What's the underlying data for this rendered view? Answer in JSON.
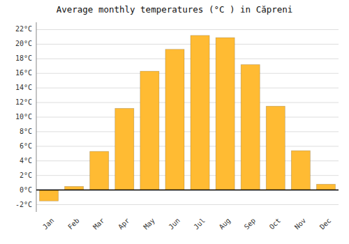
{
  "chart_data": {
    "type": "bar",
    "title": "Average monthly temperatures (°C ) in Căpreni",
    "categories": [
      "Jan",
      "Feb",
      "Mar",
      "Apr",
      "May",
      "Jun",
      "Jul",
      "Aug",
      "Sep",
      "Oct",
      "Nov",
      "Dec"
    ],
    "values": [
      -1.5,
      0.5,
      5.3,
      11.2,
      16.3,
      19.3,
      21.2,
      20.9,
      17.2,
      11.5,
      5.4,
      0.8
    ],
    "color": "#FFBB33",
    "ylim": [
      -3.0,
      23.0
    ],
    "yticks": [
      {
        "value": -2,
        "label": "-2°C"
      },
      {
        "value": 0,
        "label": "0°C"
      },
      {
        "value": 2,
        "label": "2°C"
      },
      {
        "value": 4,
        "label": "4°C"
      },
      {
        "value": 6,
        "label": "6°C"
      },
      {
        "value": 8,
        "label": "8°C"
      },
      {
        "value": 10,
        "label": "10°C"
      },
      {
        "value": 12,
        "label": "12°C"
      },
      {
        "value": 14,
        "label": "14°C"
      },
      {
        "value": 16,
        "label": "16°C"
      },
      {
        "value": 18,
        "label": "18°C"
      },
      {
        "value": 20,
        "label": "20°C"
      },
      {
        "value": 22,
        "label": "22°C"
      }
    ],
    "grid": true
  }
}
